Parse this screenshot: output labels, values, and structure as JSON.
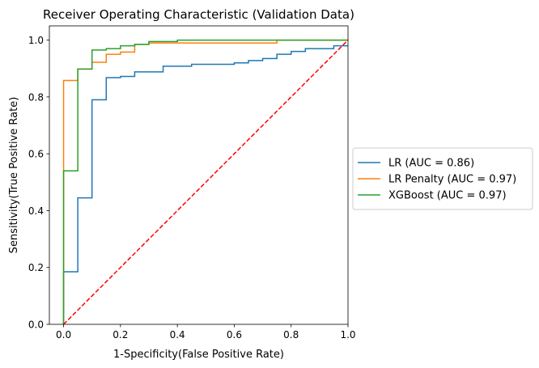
{
  "chart_data": {
    "type": "line",
    "title": "Receiver Operating Characteristic (Validation Data)",
    "xlabel": "1-Specificity(False Positive Rate)",
    "ylabel": "Sensitivity(True Positive Rate)",
    "xlim": [
      -0.05,
      1.0
    ],
    "ylim": [
      0.0,
      1.05
    ],
    "xticks": [
      0.0,
      0.2,
      0.4,
      0.6,
      0.8,
      1.0
    ],
    "xtick_labels": [
      "0.0",
      "0.2",
      "0.4",
      "0.6",
      "0.8",
      "1.0"
    ],
    "yticks": [
      0.0,
      0.2,
      0.4,
      0.6,
      0.8,
      1.0
    ],
    "ytick_labels": [
      "0.0",
      "0.2",
      "0.4",
      "0.6",
      "0.8",
      "1.0"
    ],
    "grid": false,
    "legend_position": "center-left, outside right of plot",
    "series": [
      {
        "name": "LR (AUC = 0.86)",
        "color": "#1f77b4",
        "x": [
          0.0,
          0.0,
          0.05,
          0.05,
          0.1,
          0.1,
          0.15,
          0.15,
          0.2,
          0.2,
          0.25,
          0.25,
          0.35,
          0.35,
          0.45,
          0.45,
          0.6,
          0.6,
          0.65,
          0.65,
          0.7,
          0.7,
          0.75,
          0.75,
          0.8,
          0.8,
          0.85,
          0.85,
          0.95,
          0.95,
          1.0
        ],
        "y": [
          0.0,
          0.185,
          0.185,
          0.445,
          0.445,
          0.79,
          0.79,
          0.868,
          0.868,
          0.872,
          0.872,
          0.888,
          0.888,
          0.908,
          0.908,
          0.915,
          0.915,
          0.92,
          0.92,
          0.928,
          0.928,
          0.935,
          0.935,
          0.95,
          0.95,
          0.96,
          0.96,
          0.97,
          0.97,
          0.98,
          0.98
        ]
      },
      {
        "name": "LR Penalty (AUC = 0.97)",
        "color": "#ff7f0e",
        "x": [
          0.0,
          0.0,
          0.0,
          0.05,
          0.05,
          0.1,
          0.1,
          0.15,
          0.15,
          0.2,
          0.2,
          0.25,
          0.25,
          0.3,
          0.3,
          0.75,
          0.75,
          1.0
        ],
        "y": [
          0.0,
          0.54,
          0.858,
          0.858,
          0.898,
          0.898,
          0.922,
          0.922,
          0.95,
          0.95,
          0.958,
          0.958,
          0.985,
          0.985,
          0.99,
          0.99,
          1.0,
          1.0
        ]
      },
      {
        "name": "XGBoost (AUC = 0.97)",
        "color": "#2ca02c",
        "x": [
          0.0,
          0.0,
          0.05,
          0.05,
          0.1,
          0.1,
          0.15,
          0.15,
          0.2,
          0.2,
          0.25,
          0.25,
          0.3,
          0.3,
          0.4,
          0.4,
          1.0
        ],
        "y": [
          0.0,
          0.54,
          0.54,
          0.898,
          0.898,
          0.965,
          0.965,
          0.97,
          0.97,
          0.98,
          0.98,
          0.985,
          0.985,
          0.995,
          0.995,
          1.0,
          1.0
        ]
      },
      {
        "color": "#ff0000",
        "style": "dashed",
        "x": [
          0.0,
          1.0
        ],
        "y": [
          0.0,
          1.0
        ]
      }
    ]
  }
}
